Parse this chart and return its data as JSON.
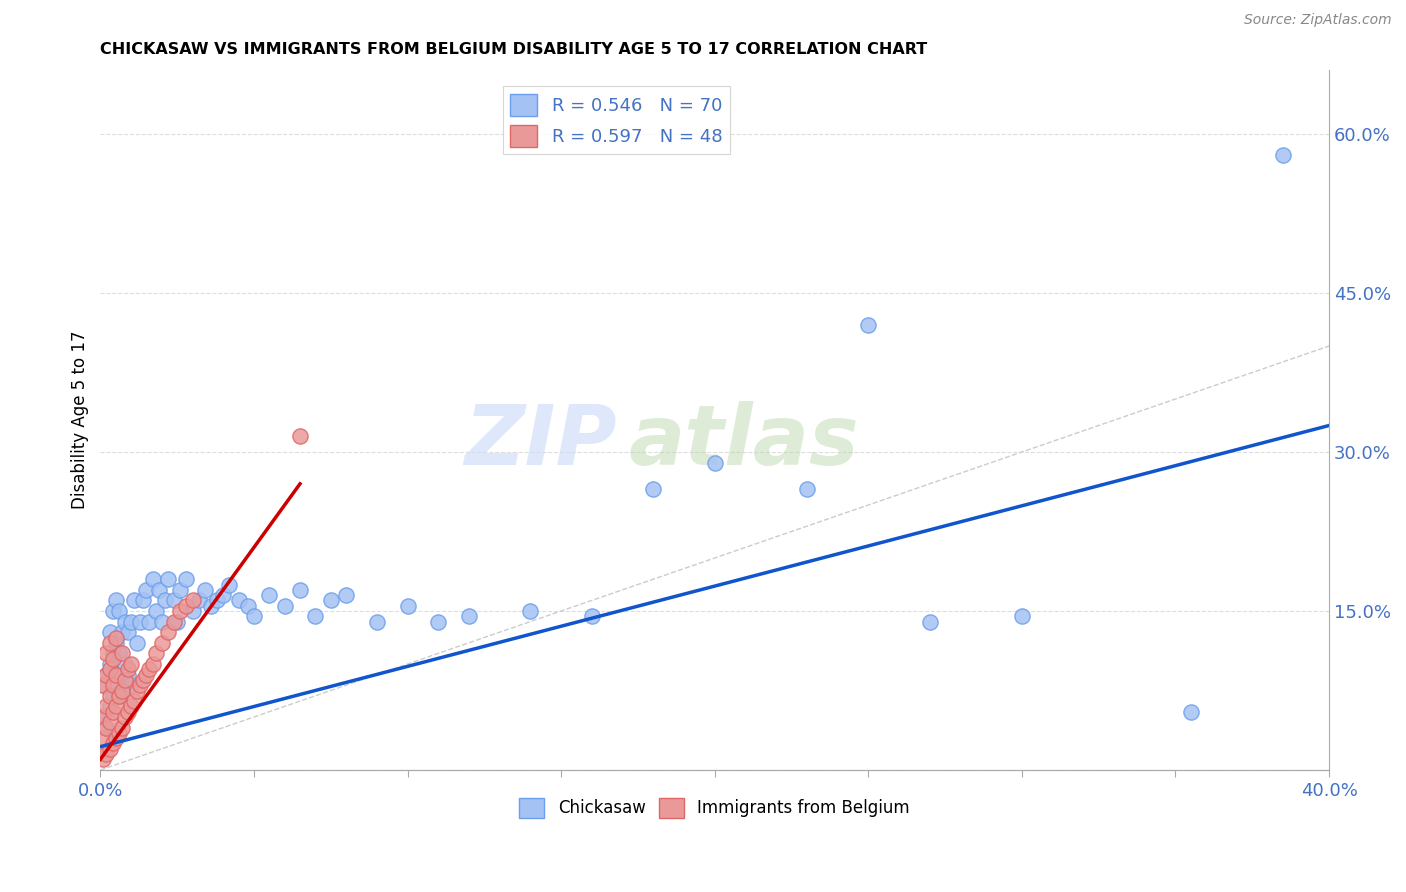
{
  "title": "CHICKASAW VS IMMIGRANTS FROM BELGIUM DISABILITY AGE 5 TO 17 CORRELATION CHART",
  "source": "Source: ZipAtlas.com",
  "ylabel": "Disability Age 5 to 17",
  "xlim": [
    0.0,
    0.4
  ],
  "ylim": [
    0.0,
    0.66
  ],
  "xticks": [
    0.0,
    0.05,
    0.1,
    0.15,
    0.2,
    0.25,
    0.3,
    0.35,
    0.4
  ],
  "yticks_right": [
    0.0,
    0.15,
    0.3,
    0.45,
    0.6
  ],
  "yticklabels_right": [
    "",
    "15.0%",
    "30.0%",
    "45.0%",
    "60.0%"
  ],
  "blue_color": "#a4c2f4",
  "blue_edge_color": "#6d9eeb",
  "pink_color": "#ea9999",
  "pink_edge_color": "#e06666",
  "blue_line_color": "#1155cc",
  "pink_line_color": "#cc0000",
  "ref_line_color": "#cccccc",
  "legend_R_blue": "R = 0.546",
  "legend_N_blue": "N = 70",
  "legend_R_pink": "R = 0.597",
  "legend_N_pink": "N = 48",
  "watermark_zip": "ZIP",
  "watermark_atlas": "atlas",
  "blue_scatter_x": [
    0.001,
    0.001,
    0.002,
    0.002,
    0.003,
    0.003,
    0.003,
    0.004,
    0.004,
    0.004,
    0.005,
    0.005,
    0.005,
    0.006,
    0.006,
    0.006,
    0.007,
    0.007,
    0.008,
    0.008,
    0.009,
    0.009,
    0.01,
    0.01,
    0.011,
    0.012,
    0.013,
    0.014,
    0.015,
    0.016,
    0.017,
    0.018,
    0.019,
    0.02,
    0.021,
    0.022,
    0.024,
    0.025,
    0.026,
    0.028,
    0.03,
    0.032,
    0.034,
    0.036,
    0.038,
    0.04,
    0.042,
    0.045,
    0.048,
    0.05,
    0.055,
    0.06,
    0.065,
    0.07,
    0.075,
    0.08,
    0.09,
    0.1,
    0.11,
    0.12,
    0.14,
    0.16,
    0.18,
    0.2,
    0.23,
    0.25,
    0.27,
    0.3,
    0.385,
    0.355
  ],
  "blue_scatter_y": [
    0.05,
    0.08,
    0.04,
    0.09,
    0.06,
    0.1,
    0.13,
    0.07,
    0.11,
    0.15,
    0.08,
    0.12,
    0.16,
    0.07,
    0.11,
    0.15,
    0.09,
    0.13,
    0.1,
    0.14,
    0.09,
    0.13,
    0.08,
    0.14,
    0.16,
    0.12,
    0.14,
    0.16,
    0.17,
    0.14,
    0.18,
    0.15,
    0.17,
    0.14,
    0.16,
    0.18,
    0.16,
    0.14,
    0.17,
    0.18,
    0.15,
    0.16,
    0.17,
    0.155,
    0.16,
    0.165,
    0.175,
    0.16,
    0.155,
    0.145,
    0.165,
    0.155,
    0.17,
    0.145,
    0.16,
    0.165,
    0.14,
    0.155,
    0.14,
    0.145,
    0.15,
    0.145,
    0.265,
    0.29,
    0.265,
    0.42,
    0.14,
    0.145,
    0.58,
    0.055
  ],
  "pink_scatter_x": [
    0.001,
    0.001,
    0.001,
    0.001,
    0.002,
    0.002,
    0.002,
    0.002,
    0.002,
    0.003,
    0.003,
    0.003,
    0.003,
    0.003,
    0.004,
    0.004,
    0.004,
    0.004,
    0.005,
    0.005,
    0.005,
    0.005,
    0.006,
    0.006,
    0.007,
    0.007,
    0.007,
    0.008,
    0.008,
    0.009,
    0.009,
    0.01,
    0.01,
    0.011,
    0.012,
    0.013,
    0.014,
    0.015,
    0.016,
    0.017,
    0.018,
    0.02,
    0.022,
    0.024,
    0.026,
    0.028,
    0.065,
    0.03
  ],
  "pink_scatter_y": [
    0.01,
    0.03,
    0.05,
    0.08,
    0.015,
    0.04,
    0.06,
    0.09,
    0.11,
    0.02,
    0.045,
    0.07,
    0.095,
    0.12,
    0.025,
    0.055,
    0.08,
    0.105,
    0.03,
    0.06,
    0.09,
    0.125,
    0.035,
    0.07,
    0.04,
    0.075,
    0.11,
    0.05,
    0.085,
    0.055,
    0.095,
    0.06,
    0.1,
    0.065,
    0.075,
    0.08,
    0.085,
    0.09,
    0.095,
    0.1,
    0.11,
    0.12,
    0.13,
    0.14,
    0.15,
    0.155,
    0.315,
    0.16
  ],
  "blue_trend_x": [
    0.0,
    0.4
  ],
  "blue_trend_y": [
    0.022,
    0.325
  ],
  "pink_trend_x": [
    0.0,
    0.065
  ],
  "pink_trend_y": [
    0.01,
    0.27
  ],
  "ref_line_x": [
    0.0,
    0.66
  ],
  "ref_line_y": [
    0.0,
    0.66
  ],
  "background_color": "#ffffff",
  "grid_color": "#dddddd",
  "tick_color": "#4472c4",
  "text_color_blue": "#4472c4"
}
